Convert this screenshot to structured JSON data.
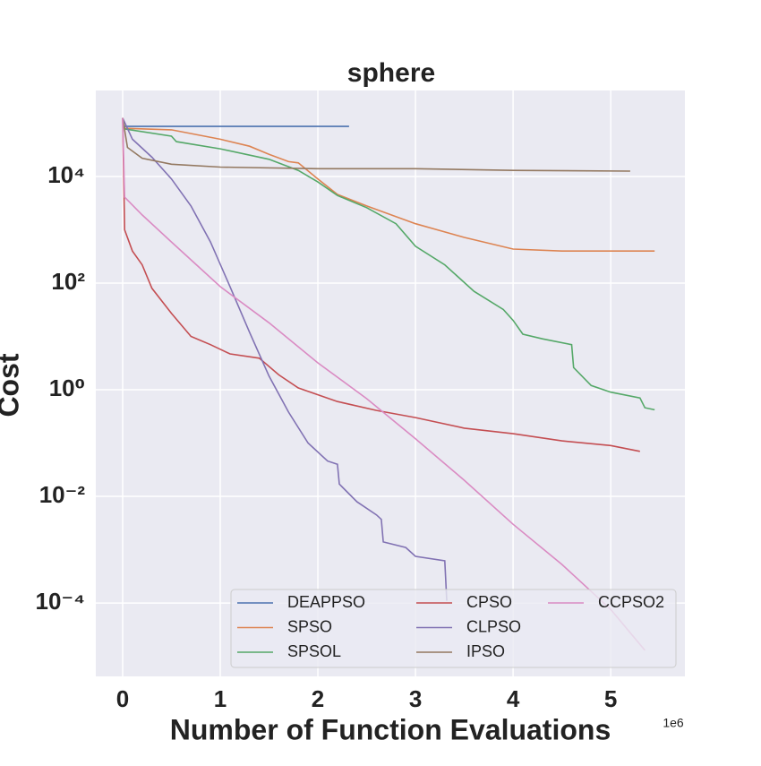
{
  "chart_data": {
    "type": "line",
    "title": "sphere",
    "xlabel": "Number of Function Evaluations",
    "ylabel": "Cost",
    "x_offset_label": "1e6",
    "xlim": [
      -0.275,
      5.76
    ],
    "xticks": [
      0,
      1,
      2,
      3,
      4,
      5
    ],
    "ylim": [
      4.2e-06,
      410000
    ],
    "y_scale": "log",
    "yticks": [
      {
        "value": 0.0001,
        "label": "10⁻⁴"
      },
      {
        "value": 0.01,
        "label": "10⁻²"
      },
      {
        "value": 1,
        "label": "10⁰"
      },
      {
        "value": 100,
        "label": "10²"
      },
      {
        "value": 10000,
        "label": "10⁴"
      }
    ],
    "grid": true,
    "legend_loc": "lower right",
    "legend_columns": 3,
    "series": [
      {
        "name": "DEAPPSO",
        "color": "#4c72b0",
        "x": [
          0,
          2.32
        ],
        "values": [
          87000,
          87000
        ]
      },
      {
        "name": "SPSO",
        "color": "#dd8452",
        "x": [
          0,
          0.02,
          0.5,
          1.0,
          1.3,
          1.5,
          1.7,
          1.8,
          2.0,
          2.2,
          2.5,
          3.0,
          3.5,
          4.0,
          4.5,
          5.45
        ],
        "values": [
          125000,
          80000,
          75000,
          50000,
          37000,
          26000,
          19000,
          18000,
          9000,
          4600,
          2800,
          1300,
          720,
          435,
          400,
          400
        ]
      },
      {
        "name": "SPSOL",
        "color": "#55a868",
        "x": [
          0,
          0.02,
          0.5,
          0.55,
          1.0,
          1.5,
          1.8,
          2.0,
          2.2,
          2.5,
          2.8,
          3.0,
          3.3,
          3.6,
          3.9,
          4.0,
          4.1,
          4.3,
          4.6,
          4.62,
          4.8,
          5.0,
          5.3,
          5.35,
          5.45
        ],
        "values": [
          125000,
          78000,
          57000,
          45000,
          33000,
          21000,
          13000,
          7900,
          4400,
          2600,
          1300,
          490,
          220,
          70,
          32,
          20,
          11,
          9,
          7,
          2.6,
          1.2,
          0.9,
          0.7,
          0.46,
          0.42
        ]
      },
      {
        "name": "CPSO",
        "color": "#c44e52",
        "x": [
          0,
          0.02,
          0.1,
          0.2,
          0.3,
          0.5,
          0.7,
          0.9,
          1.1,
          1.4,
          1.6,
          1.8,
          2.2,
          2.6,
          3.0,
          3.5,
          4.0,
          4.5,
          5.0,
          5.3
        ],
        "values": [
          125000,
          1000,
          400,
          220,
          80,
          27,
          10,
          7,
          4.7,
          3.9,
          1.9,
          1.08,
          0.6,
          0.41,
          0.3,
          0.19,
          0.15,
          0.11,
          0.09,
          0.07
        ]
      },
      {
        "name": "CLPSO",
        "color": "#8172b3",
        "x": [
          0,
          0.1,
          0.3,
          0.5,
          0.7,
          0.9,
          1.1,
          1.3,
          1.5,
          1.7,
          1.9,
          2.1,
          2.2,
          2.22,
          2.4,
          2.6,
          2.65,
          2.67,
          2.9,
          3.0,
          3.3,
          3.32
        ],
        "values": [
          125000,
          50000,
          23000,
          9000,
          2800,
          590,
          86,
          12,
          1.8,
          0.38,
          0.1,
          0.046,
          0.04,
          0.017,
          0.0079,
          0.0045,
          0.0037,
          0.0014,
          0.0011,
          0.00075,
          0.00062,
          0.00011
        ]
      },
      {
        "name": "IPSO",
        "color": "#937860",
        "x": [
          0,
          0.05,
          0.2,
          0.5,
          1.0,
          2.0,
          3.0,
          4.0,
          5.2
        ],
        "values": [
          125000,
          35000,
          22000,
          17000,
          15000,
          14000,
          14000,
          13000,
          12600
        ]
      },
      {
        "name": "CCPSO2",
        "color": "#da8bc3",
        "x": [
          0,
          0.02,
          0.2,
          0.5,
          1.0,
          1.5,
          2.0,
          2.5,
          3.0,
          3.5,
          4.0,
          4.5,
          5.0,
          5.35
        ],
        "values": [
          125000,
          4100,
          1900,
          590,
          86,
          18,
          3.2,
          0.68,
          0.12,
          0.02,
          0.003,
          0.00053,
          7.6e-05,
          1.3e-05
        ]
      }
    ]
  }
}
